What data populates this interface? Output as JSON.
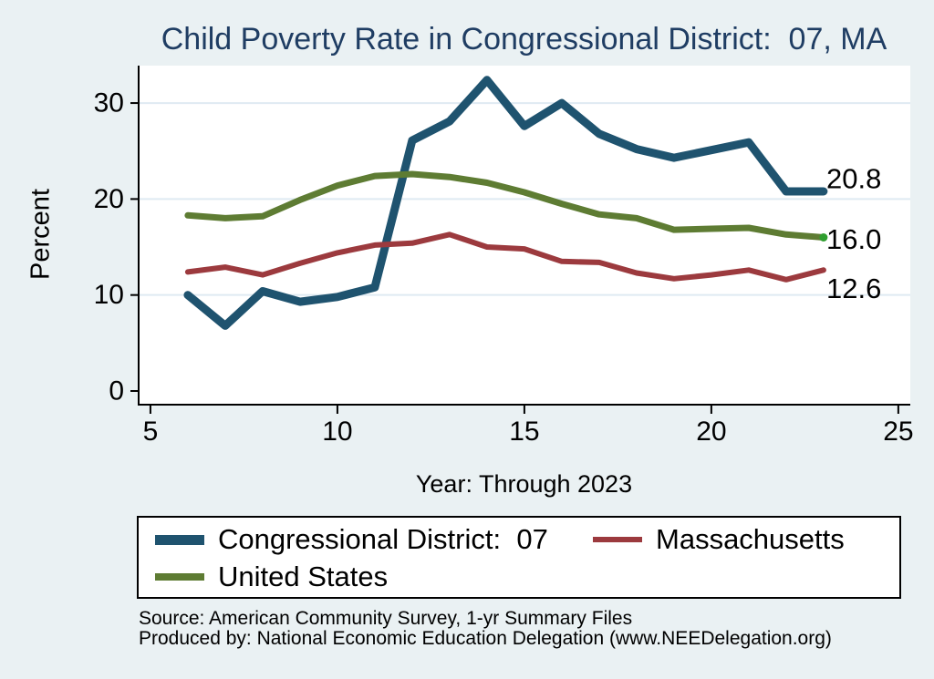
{
  "colors": {
    "background": "#eaf1f3",
    "plot_background": "#ffffff",
    "gridline": "#dfeaf2",
    "axis": "#000000",
    "title_text": "#1f3d63",
    "body_text": "#000000"
  },
  "chart_data": {
    "type": "line",
    "title": "Child Poverty Rate in Congressional District:  07, MA",
    "xlabel": "Year: Through 2023",
    "ylabel": "Percent",
    "x": [
      6,
      7,
      8,
      9,
      10,
      11,
      12,
      13,
      14,
      15,
      16,
      17,
      18,
      19,
      20,
      21,
      22,
      23
    ],
    "series": [
      {
        "id": "cd07",
        "name": "Congressional District:  07",
        "color": "#1f536f",
        "values": [
          10.0,
          6.8,
          10.4,
          9.3,
          9.8,
          10.8,
          26.1,
          28.1,
          32.4,
          27.6,
          30.0,
          26.8,
          25.2,
          24.3,
          25.1,
          25.9,
          20.8,
          20.8
        ],
        "end_label": "20.8"
      },
      {
        "id": "ma",
        "name": "Massachusetts",
        "color": "#9c3a3e",
        "values": [
          12.4,
          12.9,
          12.1,
          13.3,
          14.4,
          15.2,
          15.4,
          16.3,
          15.0,
          14.8,
          13.5,
          13.4,
          12.3,
          11.7,
          12.1,
          12.6,
          11.6,
          12.6
        ],
        "end_label": "12.6"
      },
      {
        "id": "us",
        "name": "United States",
        "color": "#5e7c33",
        "values": [
          18.3,
          18.0,
          18.2,
          19.9,
          21.4,
          22.4,
          22.6,
          22.3,
          21.7,
          20.7,
          19.5,
          18.4,
          18.0,
          16.8,
          16.9,
          17.0,
          16.3,
          16.0
        ],
        "end_label": "16.0",
        "end_marker_color": "#2f9e2f"
      }
    ],
    "xticks": [
      5,
      10,
      15,
      20,
      25
    ],
    "yticks": [
      0,
      10,
      20,
      30
    ],
    "xlim": [
      4.66,
      25.32
    ],
    "ylim": [
      -1.33,
      33.9
    ],
    "grid": "horizontal",
    "legend_position": "bottom-box"
  },
  "source": {
    "line1": "Source: American Community Survey, 1-yr Summary Files",
    "line2": "Produced by: National Economic Education Delegation (www.NEEDelegation.org)"
  }
}
